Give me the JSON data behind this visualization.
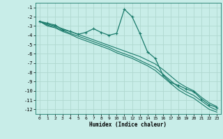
{
  "xlabel": "Humidex (Indice chaleur)",
  "bg_color": "#c8ede8",
  "grid_color": "#b0d8d0",
  "line_color": "#1a7a6a",
  "xlim": [
    -0.5,
    23.5
  ],
  "ylim": [
    -12.5,
    -0.5
  ],
  "xticks": [
    0,
    1,
    2,
    3,
    4,
    5,
    6,
    7,
    8,
    9,
    10,
    11,
    12,
    13,
    14,
    15,
    16,
    17,
    18,
    19,
    20,
    21,
    22,
    23
  ],
  "yticks": [
    -1,
    -2,
    -3,
    -4,
    -5,
    -6,
    -7,
    -8,
    -9,
    -10,
    -11,
    -12
  ],
  "series_main": {
    "x": [
      0,
      1,
      2,
      3,
      4,
      5,
      6,
      7,
      8,
      9,
      10,
      11,
      12,
      13,
      14,
      15,
      16,
      17,
      18,
      19,
      20,
      21,
      22,
      23
    ],
    "y": [
      -2.5,
      -2.7,
      -2.9,
      -3.4,
      -3.6,
      -3.9,
      -3.7,
      -3.3,
      -3.7,
      -4.0,
      -3.8,
      -1.2,
      -2.0,
      -3.8,
      -5.8,
      -6.5,
      -8.3,
      -9.1,
      -9.4,
      -9.8,
      -10.1,
      -10.9,
      -11.5,
      -11.8
    ]
  },
  "series_flat": [
    {
      "x": [
        0,
        1,
        2,
        3,
        4,
        5,
        6,
        7,
        8,
        9,
        10,
        11,
        12,
        13,
        14,
        15,
        16,
        17,
        18,
        19,
        20,
        21,
        22,
        23
      ],
      "y": [
        -2.5,
        -2.8,
        -3.0,
        -3.3,
        -3.6,
        -3.9,
        -4.2,
        -4.5,
        -4.8,
        -5.1,
        -5.4,
        -5.7,
        -6.0,
        -6.3,
        -6.7,
        -7.1,
        -7.7,
        -8.4,
        -9.1,
        -9.6,
        -10.0,
        -10.7,
        -11.3,
        -11.7
      ]
    },
    {
      "x": [
        0,
        1,
        2,
        3,
        4,
        5,
        6,
        7,
        8,
        9,
        10,
        11,
        12,
        13,
        14,
        15,
        16,
        17,
        18,
        19,
        20,
        21,
        22,
        23
      ],
      "y": [
        -2.5,
        -2.9,
        -3.1,
        -3.5,
        -3.8,
        -4.1,
        -4.4,
        -4.7,
        -5.0,
        -5.3,
        -5.7,
        -6.0,
        -6.3,
        -6.7,
        -7.1,
        -7.5,
        -8.2,
        -8.9,
        -9.6,
        -10.1,
        -10.5,
        -11.1,
        -11.7,
        -12.1
      ]
    },
    {
      "x": [
        0,
        1,
        2,
        3,
        4,
        5,
        6,
        7,
        8,
        9,
        10,
        11,
        12,
        13,
        14,
        15,
        16,
        17,
        18,
        19,
        20,
        21,
        22,
        23
      ],
      "y": [
        -2.5,
        -3.0,
        -3.2,
        -3.6,
        -3.9,
        -4.3,
        -4.6,
        -4.9,
        -5.2,
        -5.5,
        -5.9,
        -6.2,
        -6.5,
        -6.9,
        -7.3,
        -7.8,
        -8.5,
        -9.2,
        -9.9,
        -10.4,
        -10.8,
        -11.4,
        -12.0,
        -12.3
      ]
    }
  ]
}
